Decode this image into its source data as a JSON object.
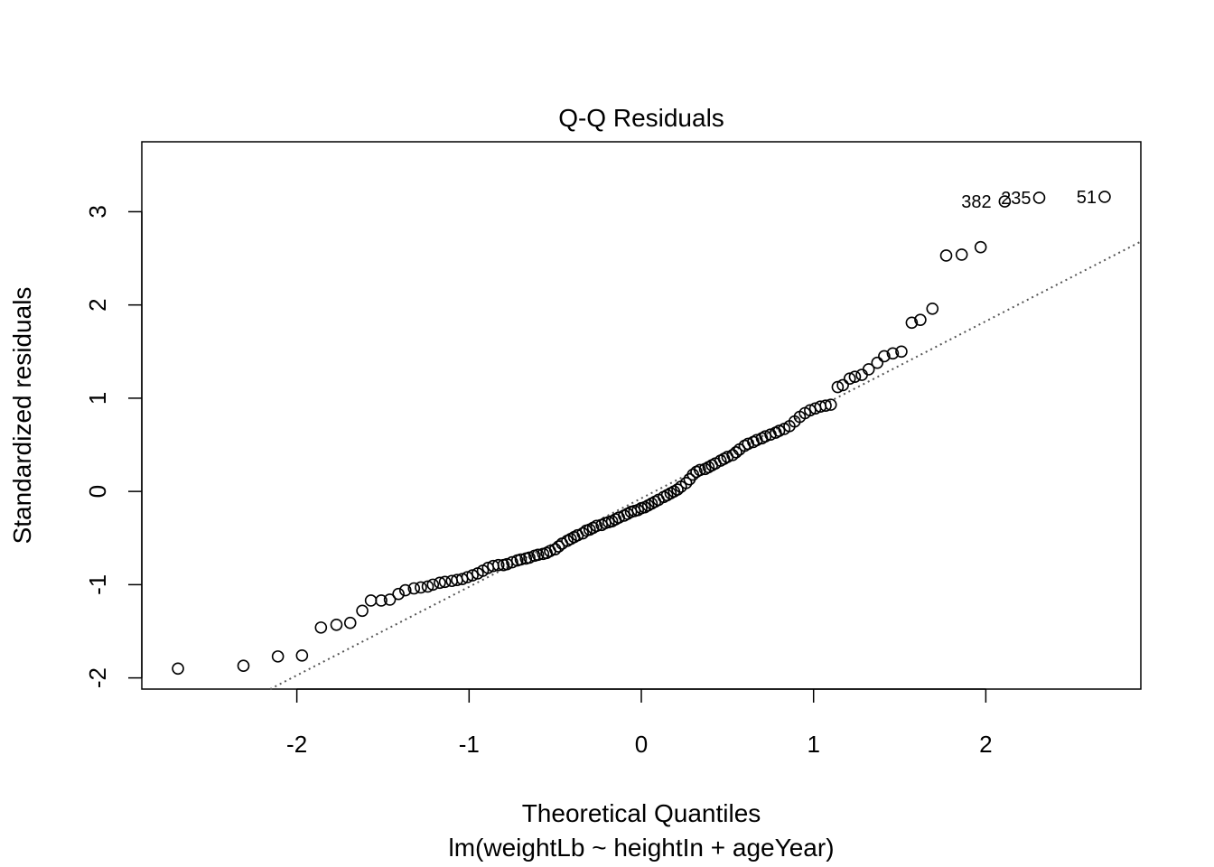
{
  "chart_data": {
    "type": "scatter",
    "title": "Q-Q Residuals",
    "xlabel": "Theoretical Quantiles",
    "sublabel": "lm(weightLb ~ heightIn + ageYear)",
    "ylabel": "Standardized residuals",
    "xlim": [
      -2.9,
      2.9
    ],
    "ylim": [
      -2.12,
      3.75
    ],
    "xticks": [
      -2,
      -1,
      0,
      1,
      2
    ],
    "yticks": [
      -2,
      -1,
      0,
      1,
      2,
      3
    ],
    "reference_line": {
      "style": "dotted",
      "color": "#555555",
      "points": [
        [
          -2.155,
          -2.12
        ],
        [
          2.9,
          2.68
        ]
      ]
    },
    "point_labels": [
      {
        "text": "382",
        "x": 2.08,
        "y": 3.11
      },
      {
        "text": "235",
        "x": 2.31,
        "y": 3.15
      },
      {
        "text": "51",
        "x": 2.69,
        "y": 3.16
      }
    ],
    "points": [
      [
        -2.69,
        -1.9
      ],
      [
        -2.31,
        -1.87
      ],
      [
        -2.11,
        -1.77
      ],
      [
        -1.97,
        -1.76
      ],
      [
        -1.86,
        -1.46
      ],
      [
        -1.77,
        -1.43
      ],
      [
        -1.69,
        -1.41
      ],
      [
        -1.62,
        -1.28
      ],
      [
        -1.57,
        -1.17
      ],
      [
        -1.51,
        -1.17
      ],
      [
        -1.46,
        -1.16
      ],
      [
        -1.41,
        -1.1
      ],
      [
        -1.37,
        -1.06
      ],
      [
        -1.32,
        -1.04
      ],
      [
        -1.28,
        -1.03
      ],
      [
        -1.24,
        -1.02
      ],
      [
        -1.21,
        -1.0
      ],
      [
        -1.17,
        -0.98
      ],
      [
        -1.14,
        -0.97
      ],
      [
        -1.1,
        -0.96
      ],
      [
        -1.07,
        -0.95
      ],
      [
        -1.04,
        -0.94
      ],
      [
        -1.01,
        -0.92
      ],
      [
        -0.98,
        -0.9
      ],
      [
        -0.95,
        -0.88
      ],
      [
        -0.92,
        -0.85
      ],
      [
        -0.89,
        -0.82
      ],
      [
        -0.86,
        -0.8
      ],
      [
        -0.83,
        -0.79
      ],
      [
        -0.8,
        -0.79
      ],
      [
        -0.78,
        -0.78
      ],
      [
        -0.75,
        -0.76
      ],
      [
        -0.72,
        -0.74
      ],
      [
        -0.7,
        -0.73
      ],
      [
        -0.67,
        -0.72
      ],
      [
        -0.65,
        -0.71
      ],
      [
        -0.62,
        -0.69
      ],
      [
        -0.6,
        -0.68
      ],
      [
        -0.57,
        -0.67
      ],
      [
        -0.55,
        -0.66
      ],
      [
        -0.53,
        -0.64
      ],
      [
        -0.5,
        -0.62
      ],
      [
        -0.48,
        -0.59
      ],
      [
        -0.46,
        -0.56
      ],
      [
        -0.43,
        -0.53
      ],
      [
        -0.41,
        -0.51
      ],
      [
        -0.39,
        -0.49
      ],
      [
        -0.37,
        -0.47
      ],
      [
        -0.34,
        -0.45
      ],
      [
        -0.32,
        -0.42
      ],
      [
        -0.3,
        -0.41
      ],
      [
        -0.28,
        -0.39
      ],
      [
        -0.26,
        -0.37
      ],
      [
        -0.23,
        -0.36
      ],
      [
        -0.21,
        -0.34
      ],
      [
        -0.19,
        -0.33
      ],
      [
        -0.17,
        -0.32
      ],
      [
        -0.15,
        -0.3
      ],
      [
        -0.13,
        -0.28
      ],
      [
        -0.1,
        -0.26
      ],
      [
        -0.08,
        -0.24
      ],
      [
        -0.06,
        -0.22
      ],
      [
        -0.04,
        -0.21
      ],
      [
        -0.02,
        -0.2
      ],
      [
        0.0,
        -0.18
      ],
      [
        0.02,
        -0.17
      ],
      [
        0.04,
        -0.15
      ],
      [
        0.06,
        -0.13
      ],
      [
        0.08,
        -0.11
      ],
      [
        0.1,
        -0.09
      ],
      [
        0.13,
        -0.06
      ],
      [
        0.15,
        -0.04
      ],
      [
        0.17,
        -0.02
      ],
      [
        0.19,
        0.0
      ],
      [
        0.21,
        0.02
      ],
      [
        0.23,
        0.05
      ],
      [
        0.26,
        0.09
      ],
      [
        0.28,
        0.13
      ],
      [
        0.3,
        0.18
      ],
      [
        0.32,
        0.21
      ],
      [
        0.34,
        0.23
      ],
      [
        0.37,
        0.24
      ],
      [
        0.39,
        0.26
      ],
      [
        0.41,
        0.28
      ],
      [
        0.43,
        0.3
      ],
      [
        0.46,
        0.33
      ],
      [
        0.48,
        0.35
      ],
      [
        0.5,
        0.37
      ],
      [
        0.53,
        0.39
      ],
      [
        0.55,
        0.42
      ],
      [
        0.57,
        0.45
      ],
      [
        0.6,
        0.49
      ],
      [
        0.62,
        0.51
      ],
      [
        0.65,
        0.53
      ],
      [
        0.67,
        0.55
      ],
      [
        0.7,
        0.57
      ],
      [
        0.72,
        0.59
      ],
      [
        0.75,
        0.61
      ],
      [
        0.78,
        0.63
      ],
      [
        0.8,
        0.65
      ],
      [
        0.83,
        0.67
      ],
      [
        0.86,
        0.7
      ],
      [
        0.89,
        0.75
      ],
      [
        0.92,
        0.8
      ],
      [
        0.95,
        0.84
      ],
      [
        0.98,
        0.87
      ],
      [
        1.01,
        0.89
      ],
      [
        1.04,
        0.91
      ],
      [
        1.07,
        0.92
      ],
      [
        1.1,
        0.93
      ],
      [
        1.14,
        1.12
      ],
      [
        1.17,
        1.14
      ],
      [
        1.21,
        1.21
      ],
      [
        1.24,
        1.23
      ],
      [
        1.28,
        1.25
      ],
      [
        1.32,
        1.31
      ],
      [
        1.37,
        1.38
      ],
      [
        1.41,
        1.45
      ],
      [
        1.46,
        1.48
      ],
      [
        1.51,
        1.5
      ],
      [
        1.57,
        1.81
      ],
      [
        1.62,
        1.84
      ],
      [
        1.69,
        1.96
      ],
      [
        1.77,
        2.53
      ],
      [
        1.86,
        2.54
      ],
      [
        1.97,
        2.62
      ],
      [
        2.11,
        3.11
      ],
      [
        2.31,
        3.15
      ],
      [
        2.69,
        3.16
      ]
    ]
  }
}
